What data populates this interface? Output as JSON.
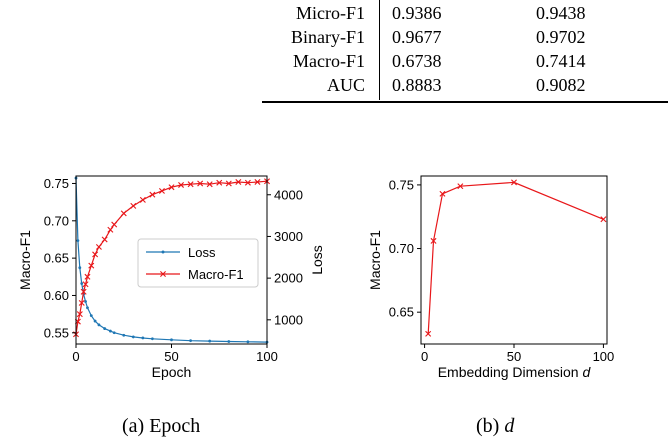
{
  "table": {
    "rows": [
      {
        "metric": "Micro-F1",
        "v1": "0.9386",
        "v2": "0.9438"
      },
      {
        "metric": "Binary-F1",
        "v1": "0.9677",
        "v2": "0.9702"
      },
      {
        "metric": "Macro-F1",
        "v1": "0.6738",
        "v2": "0.7414"
      },
      {
        "metric": "AUC",
        "v1": "0.8883",
        "v2": "0.9082"
      }
    ]
  },
  "captions": {
    "a": "(a) Epoch",
    "b_prefix": "(b) ",
    "b_symbol": "d"
  },
  "chart_data": [
    {
      "type": "line",
      "xlabel": "Epoch",
      "ylabel": "Macro-F1",
      "y2label": "Loss",
      "xlim": [
        0,
        100
      ],
      "ylim": [
        0.535,
        0.76
      ],
      "y2lim": [
        420,
        4450
      ],
      "xticks": [
        0,
        50,
        100
      ],
      "yticks": [
        "0.55",
        "0.60",
        "0.65",
        "0.70",
        "0.75"
      ],
      "y2ticks": [
        "1000",
        "2000",
        "3000",
        "4000"
      ],
      "grid": false,
      "legend_position": "center-right",
      "series": [
        {
          "name": "Loss",
          "axis": "right",
          "color": "#1f77b4",
          "marker": "point",
          "x": [
            0,
            1,
            2,
            3,
            4,
            5,
            6,
            8,
            10,
            12,
            15,
            18,
            20,
            25,
            30,
            35,
            40,
            50,
            60,
            70,
            80,
            90,
            100
          ],
          "values": [
            4400,
            2900,
            2250,
            1870,
            1620,
            1440,
            1290,
            1100,
            970,
            880,
            790,
            730,
            690,
            630,
            590,
            565,
            545,
            520,
            500,
            490,
            480,
            472,
            465
          ]
        },
        {
          "name": "Macro-F1",
          "axis": "left",
          "color": "#e8171a",
          "marker": "x",
          "x": [
            0,
            1,
            2,
            3,
            4,
            5,
            6,
            8,
            10,
            12,
            15,
            18,
            20,
            25,
            30,
            35,
            40,
            45,
            50,
            55,
            60,
            65,
            70,
            75,
            80,
            85,
            90,
            95,
            100
          ],
          "values": [
            0.548,
            0.565,
            0.575,
            0.59,
            0.605,
            0.615,
            0.625,
            0.64,
            0.655,
            0.665,
            0.675,
            0.688,
            0.695,
            0.71,
            0.72,
            0.728,
            0.735,
            0.74,
            0.745,
            0.748,
            0.749,
            0.75,
            0.749,
            0.751,
            0.75,
            0.752,
            0.751,
            0.752,
            0.753
          ]
        }
      ]
    },
    {
      "type": "line",
      "xlabel": "Embedding Dimension",
      "xlabel_symbol": "d",
      "ylabel": "Macro-F1",
      "xlim": [
        -2,
        102
      ],
      "ylim": [
        0.625,
        0.757
      ],
      "xticks": [
        0,
        50,
        100
      ],
      "yticks": [
        "0.65",
        "0.70",
        "0.75"
      ],
      "grid": false,
      "series": [
        {
          "color": "#e8171a",
          "marker": "x",
          "x": [
            2,
            5,
            10,
            20,
            50,
            100
          ],
          "values": [
            0.633,
            0.706,
            0.743,
            0.749,
            0.752,
            0.723
          ]
        }
      ]
    }
  ]
}
